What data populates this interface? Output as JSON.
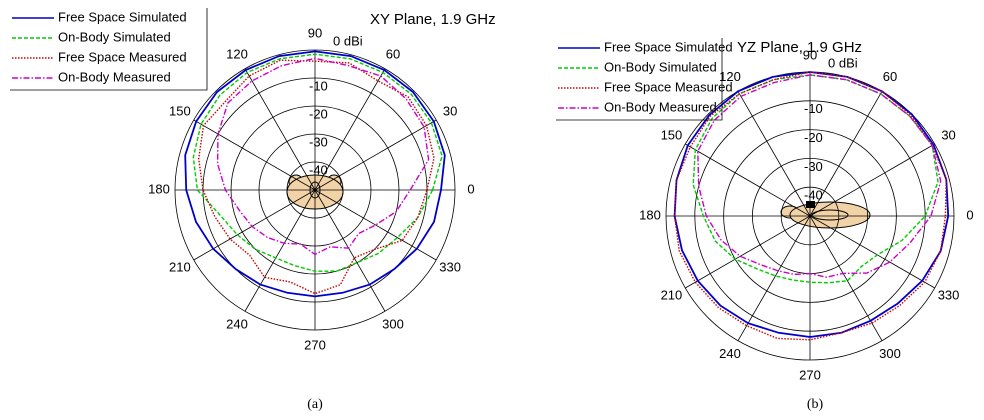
{
  "chart_data": [
    {
      "type": "polar",
      "title": "XY Plane, 1.9 GHz",
      "caption": "(a)",
      "x": [
        0,
        15,
        30,
        45,
        60,
        75,
        90,
        105,
        120,
        135,
        150,
        165,
        180,
        195,
        210,
        225,
        240,
        255,
        270,
        285,
        300,
        315,
        330,
        345
      ],
      "rlim": [
        -50,
        0
      ],
      "rticks": [
        {
          "value": 0,
          "label": "0 dBi"
        },
        -10,
        -20,
        -30,
        -40
      ],
      "thetaticks": [
        0,
        30,
        60,
        90,
        120,
        150,
        180,
        210,
        240,
        270,
        300,
        330
      ],
      "grid": true,
      "series": [
        {
          "name": "Free Space Simulated",
          "color": "#0000cc",
          "style": "solid",
          "values": [
            -5,
            -2,
            -1,
            -0.5,
            -0.5,
            -0.5,
            -0.5,
            -0.5,
            -0.5,
            -0.5,
            -1,
            -2,
            -4,
            -6,
            -8,
            -10,
            -11,
            -12,
            -12,
            -12,
            -11,
            -10,
            -8,
            -6
          ]
        },
        {
          "name": "On-Body Simulated",
          "color": "#00cc00",
          "style": "dashed",
          "values": [
            -8,
            -3,
            -2,
            -1.5,
            -1.5,
            -1.5,
            -1.5,
            -1.5,
            -1.5,
            -2,
            -3,
            -5,
            -8,
            -15,
            -18,
            -20,
            -22,
            -22,
            -21,
            -20,
            -20,
            -18,
            -16,
            -12
          ]
        },
        {
          "name": "Free Space Measured",
          "color": "#cc0000",
          "style": "dotted",
          "values": [
            -10,
            -6,
            -4,
            -3,
            -5,
            -3,
            -4,
            -2,
            -3,
            -5,
            -4,
            -7,
            -10,
            -13,
            -15,
            -17,
            -14,
            -16,
            -13,
            -15,
            -22,
            -20,
            -14,
            -12
          ]
        },
        {
          "name": "On-Body Measured",
          "color": "#cc00cc",
          "style": "dashdot",
          "values": [
            -16,
            -8,
            -5,
            -4,
            -3,
            -4,
            -3,
            -4,
            -5,
            -6,
            -10,
            -14,
            -18,
            -22,
            -24,
            -26,
            -28,
            -30,
            -27,
            -29,
            -26,
            -28,
            -25,
            -20
          ]
        }
      ]
    },
    {
      "type": "polar",
      "title": "YZ Plane, 1.9 GHz",
      "caption": "(b)",
      "x": [
        0,
        15,
        30,
        45,
        60,
        75,
        90,
        105,
        120,
        135,
        150,
        165,
        180,
        195,
        210,
        225,
        240,
        255,
        270,
        285,
        300,
        315,
        330,
        345
      ],
      "rlim": [
        -50,
        0
      ],
      "rticks": [
        {
          "value": 0,
          "label": "0 dBi"
        },
        -10,
        -20,
        -30,
        -40
      ],
      "thetaticks": [
        0,
        30,
        60,
        90,
        120,
        150,
        180,
        210,
        240,
        270,
        300,
        330
      ],
      "grid": true,
      "series": [
        {
          "name": "Free Space Simulated",
          "color": "#0000cc",
          "style": "solid",
          "values": [
            -2,
            -1,
            -0.5,
            0,
            0,
            0,
            0,
            0,
            0,
            -0.5,
            -1,
            -2,
            -3,
            -4,
            -5,
            -6,
            -7,
            -8,
            -8,
            -8,
            -8,
            -7,
            -5,
            -3
          ]
        },
        {
          "name": "On-Body Simulated",
          "color": "#00cc00",
          "style": "dashed",
          "values": [
            -10,
            -4,
            -1,
            -1,
            -1,
            -1,
            -1,
            -1,
            -1,
            -2,
            -4,
            -8,
            -13,
            -16,
            -20,
            -24,
            -26,
            -27,
            -27,
            -26,
            -24,
            -25,
            -23,
            -17
          ]
        },
        {
          "name": "Free Space Measured",
          "color": "#cc0000",
          "style": "dotted",
          "values": [
            -3,
            -1,
            -1,
            -0.5,
            0,
            0,
            0,
            -1,
            -1,
            -1,
            -2,
            -2,
            -3,
            -3,
            -4,
            -5,
            -6,
            -6,
            -7,
            -8,
            -7,
            -6,
            -4,
            -3
          ]
        },
        {
          "name": "On-Body Measured",
          "color": "#cc00cc",
          "style": "dashdot",
          "values": [
            -8,
            -3,
            -1,
            -1,
            -1,
            -1,
            -1,
            -2,
            -2,
            -3,
            -5,
            -10,
            -14,
            -18,
            -22,
            -26,
            -28,
            -29,
            -30,
            -28,
            -27,
            -22,
            -18,
            -14
          ]
        }
      ]
    }
  ]
}
